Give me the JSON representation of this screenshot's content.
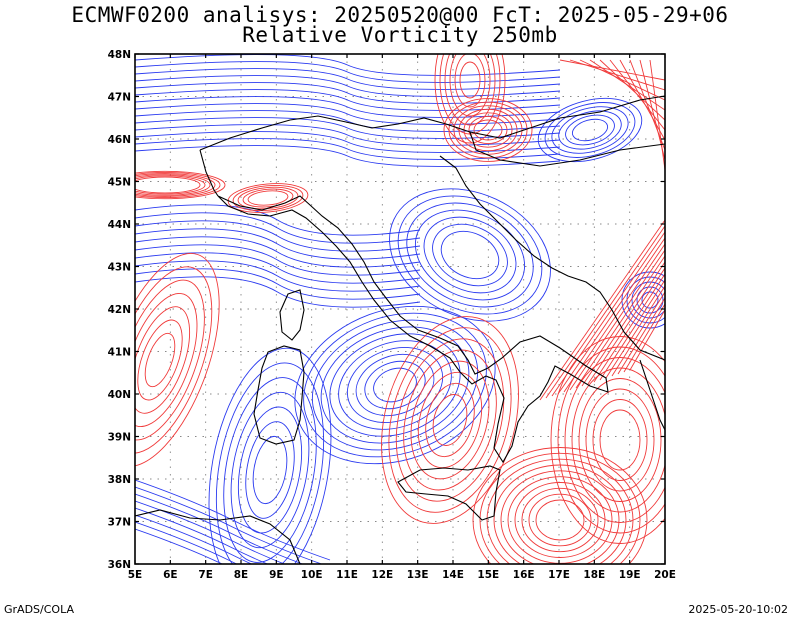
{
  "header": {
    "title_line1": "ECMWF0200 analisys: 20250520@00 FcT: 2025-05-29+06",
    "title_line2": "Relative Vorticity 250mb"
  },
  "map": {
    "lon_ticks": [
      "5E",
      "6E",
      "7E",
      "8E",
      "9E",
      "10E",
      "11E",
      "12E",
      "13E",
      "14E",
      "15E",
      "16E",
      "17E",
      "18E",
      "19E",
      "20E"
    ],
    "lat_ticks": [
      "36N",
      "37N",
      "38N",
      "39N",
      "40N",
      "41N",
      "42N",
      "43N",
      "44N",
      "45N",
      "46N",
      "47N",
      "48N"
    ],
    "lon_range": [
      5,
      20
    ],
    "lat_range": [
      36,
      48
    ],
    "grid": "dotted",
    "colors": {
      "negative_contours": "#2b3bf0",
      "positive_contours": "#f03a3a",
      "coastlines": "#000000"
    }
  },
  "footer": {
    "left": "GrADS/COLA",
    "right": "2025-05-20-10:02"
  }
}
